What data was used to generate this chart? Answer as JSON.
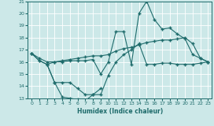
{
  "xlabel": "Humidex (Indice chaleur)",
  "bg_color": "#cce8e8",
  "grid_color": "#ffffff",
  "line_color": "#1e6b6b",
  "xlim": [
    -0.5,
    23.5
  ],
  "ylim": [
    13,
    21
  ],
  "yticks": [
    13,
    14,
    15,
    16,
    17,
    18,
    19,
    20,
    21
  ],
  "xticks": [
    0,
    1,
    2,
    3,
    4,
    5,
    6,
    7,
    8,
    9,
    10,
    11,
    12,
    13,
    14,
    15,
    16,
    17,
    18,
    19,
    20,
    21,
    22,
    23
  ],
  "line_max": {
    "x": [
      0,
      1,
      2,
      3,
      4,
      5,
      6,
      7,
      8,
      9,
      10,
      11,
      12,
      13,
      14,
      15,
      16,
      17,
      18,
      19,
      20,
      21,
      22,
      23
    ],
    "y": [
      16.7,
      16.1,
      15.8,
      16.0,
      16.0,
      16.1,
      16.1,
      16.1,
      16.2,
      15.0,
      16.0,
      18.5,
      18.5,
      15.8,
      20.0,
      21.0,
      19.5,
      18.7,
      18.8,
      18.3,
      17.9,
      16.6,
      16.3,
      16.0
    ]
  },
  "line_avg": {
    "x": [
      0,
      1,
      2,
      3,
      4,
      5,
      6,
      7,
      8,
      9,
      10,
      11,
      12,
      13,
      14,
      15,
      16,
      17,
      18,
      19,
      20,
      21,
      22,
      23
    ],
    "y": [
      16.7,
      16.3,
      16.0,
      16.0,
      16.1,
      16.2,
      16.3,
      16.4,
      16.5,
      16.5,
      16.6,
      16.9,
      17.1,
      17.2,
      17.4,
      17.6,
      17.7,
      17.8,
      17.8,
      17.9,
      18.0,
      17.5,
      16.3,
      16.0
    ]
  },
  "line_min": {
    "x": [
      0,
      1,
      2,
      3,
      4,
      5,
      6,
      7,
      8,
      9,
      10,
      11,
      12,
      13,
      14,
      15,
      16,
      17,
      18,
      19,
      20,
      21,
      22,
      23
    ],
    "y": [
      16.7,
      16.1,
      15.8,
      14.3,
      14.3,
      14.3,
      13.8,
      13.3,
      13.3,
      13.3,
      14.9,
      16.0,
      16.6,
      17.0,
      17.5,
      15.8,
      15.8,
      15.9,
      15.9,
      15.8,
      15.8,
      15.8,
      15.9,
      16.0
    ]
  },
  "line_low": {
    "x": [
      2,
      3,
      4,
      5,
      6,
      7,
      8,
      9
    ],
    "y": [
      15.8,
      14.3,
      13.1,
      13.0,
      12.9,
      12.8,
      13.3,
      13.8
    ]
  }
}
